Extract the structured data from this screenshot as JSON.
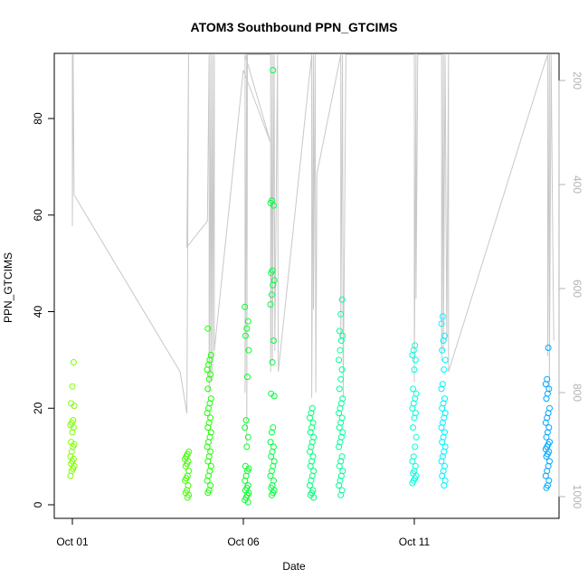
{
  "chart_data": {
    "type": "scatter",
    "title": "ATOM3 Southbound PPN_GTCIMS",
    "xlabel": "Date",
    "ylabel": "PPN_GTCIMS",
    "x_ticks": [
      "Oct 01",
      "Oct 06",
      "Oct 11"
    ],
    "x_tick_values": [
      1,
      6,
      11
    ],
    "xlim": [
      1,
      15.2
    ],
    "y_ticks": [
      0,
      20,
      40,
      60,
      80
    ],
    "ylim": [
      0,
      92
    ],
    "y2_ticks": [
      200,
      400,
      600,
      800,
      1000
    ],
    "y2lim": [
      150,
      1020
    ],
    "y2_reversed": true,
    "y2_color": "#b3b3b3",
    "grid": false,
    "clusters": [
      {
        "date": 1.0,
        "color": "#7fff00",
        "values": [
          6,
          7,
          7.5,
          8,
          8.5,
          9,
          9.5,
          10,
          11,
          12,
          12.5,
          13,
          15,
          16,
          16.5,
          17,
          17.5,
          20.5,
          21,
          24.5,
          29.5
        ]
      },
      {
        "date": 4.35,
        "color": "#40ff00",
        "values": [
          1.5,
          2,
          2.5,
          3,
          4,
          5,
          5.5,
          6,
          7,
          8,
          8.5,
          9,
          9.5,
          10,
          10.5,
          11
        ]
      },
      {
        "date": 5.0,
        "color": "#1aff00",
        "values": [
          2.5,
          3,
          4,
          5,
          6,
          7,
          8,
          9,
          10,
          11,
          12,
          13,
          14,
          15,
          16,
          17,
          18,
          19,
          20,
          21,
          22,
          24,
          26,
          27,
          28,
          29,
          30,
          31,
          36.5
        ]
      },
      {
        "date": 6.1,
        "color": "#00ff26",
        "values": [
          0.5,
          1,
          1.5,
          2,
          2.5,
          3,
          3.5,
          4,
          5,
          6,
          7,
          7.5,
          8,
          12,
          14,
          16,
          17.5,
          26.5,
          32,
          35,
          36.5,
          38,
          41
        ]
      },
      {
        "date": 6.85,
        "color": "#00ff40",
        "values": [
          2,
          2.5,
          3,
          3.5,
          4,
          5,
          6,
          7,
          8,
          9,
          10,
          11,
          12,
          13,
          15,
          16,
          22.5,
          23,
          29.5,
          34,
          41.5,
          43.5,
          45.5,
          46.5,
          48,
          48.5,
          62,
          62.5,
          63,
          90
        ]
      },
      {
        "date": 8.0,
        "color": "#00ff7a",
        "values": [
          1.5,
          2,
          2.5,
          3,
          4,
          5,
          6,
          7,
          8,
          9,
          10,
          11,
          12,
          13,
          14,
          15,
          16,
          17,
          18,
          19,
          20
        ]
      },
      {
        "date": 8.85,
        "color": "#00ff99",
        "values": [
          2,
          3,
          4,
          5,
          6,
          7,
          8,
          9,
          10,
          12,
          13,
          14,
          15,
          16,
          17,
          18,
          19,
          20,
          21,
          22,
          24,
          26,
          28,
          30,
          32,
          34,
          35,
          36,
          39.5,
          42.5
        ]
      },
      {
        "date": 11.0,
        "color": "#00ffd9",
        "values": [
          4.5,
          5,
          5.5,
          6,
          6.5,
          7,
          8,
          9,
          10,
          12,
          14,
          16,
          18,
          19,
          20,
          21,
          22,
          23,
          24,
          28,
          30,
          31,
          32,
          33
        ]
      },
      {
        "date": 11.85,
        "color": "#00f2ff",
        "values": [
          4,
          5,
          6,
          7,
          8,
          9,
          10,
          11,
          12,
          13,
          14,
          15,
          16,
          17,
          18,
          19,
          20,
          21,
          22,
          24,
          25,
          28,
          30,
          32,
          34,
          35,
          37.5,
          39
        ]
      },
      {
        "date": 14.9,
        "color": "#00a6ff",
        "values": [
          3.5,
          4,
          5,
          6,
          7,
          8,
          9,
          10,
          10.5,
          11,
          11.5,
          12,
          12.5,
          13,
          14,
          15,
          16,
          17,
          18,
          19,
          20,
          22,
          23,
          24,
          25,
          26,
          32.5
        ]
      }
    ],
    "secondary_series": {
      "name": "",
      "color": "#c8c8c8",
      "type": "line",
      "points": [
        [
          1.0,
          150
        ],
        [
          1.0,
          480
        ],
        [
          1.02,
          150
        ],
        [
          1.05,
          420
        ],
        [
          4.15,
          760
        ],
        [
          4.35,
          840
        ],
        [
          4.4,
          150
        ],
        [
          4.35,
          520
        ],
        [
          4.95,
          470
        ],
        [
          5.0,
          150
        ],
        [
          5.0,
          800
        ],
        [
          5.05,
          150
        ],
        [
          5.05,
          780
        ],
        [
          5.1,
          150
        ],
        [
          5.1,
          760
        ],
        [
          5.15,
          150
        ],
        [
          5.15,
          720
        ],
        [
          6.0,
          180
        ],
        [
          6.8,
          320
        ],
        [
          6.05,
          150
        ],
        [
          6.05,
          800
        ],
        [
          6.1,
          150
        ],
        [
          6.1,
          900
        ],
        [
          6.12,
          150
        ],
        [
          6.8,
          150
        ],
        [
          6.8,
          760
        ],
        [
          6.85,
          150
        ],
        [
          6.85,
          740
        ],
        [
          6.9,
          150
        ],
        [
          6.92,
          720
        ],
        [
          7.0,
          150
        ],
        [
          7.02,
          760
        ],
        [
          8.0,
          150
        ],
        [
          8.0,
          810
        ],
        [
          8.05,
          150
        ],
        [
          8.05,
          640
        ],
        [
          8.1,
          150
        ],
        [
          8.12,
          800
        ],
        [
          8.15,
          380
        ],
        [
          8.85,
          150
        ],
        [
          8.85,
          700
        ],
        [
          8.9,
          150
        ],
        [
          8.92,
          810
        ],
        [
          9.0,
          150
        ],
        [
          11.0,
          150
        ],
        [
          11.0,
          780
        ],
        [
          11.05,
          150
        ],
        [
          11.05,
          620
        ],
        [
          11.1,
          150
        ],
        [
          11.8,
          150
        ],
        [
          11.8,
          740
        ],
        [
          11.85,
          150
        ],
        [
          11.85,
          720
        ],
        [
          11.9,
          150
        ],
        [
          11.95,
          700
        ],
        [
          12.0,
          150
        ],
        [
          12.0,
          760
        ],
        [
          14.8,
          170
        ],
        [
          14.9,
          150
        ],
        [
          14.9,
          730
        ],
        [
          14.95,
          150
        ],
        [
          14.95,
          800
        ],
        [
          15.0,
          150
        ],
        [
          15.05,
          520
        ],
        [
          15.08,
          700
        ]
      ]
    }
  }
}
